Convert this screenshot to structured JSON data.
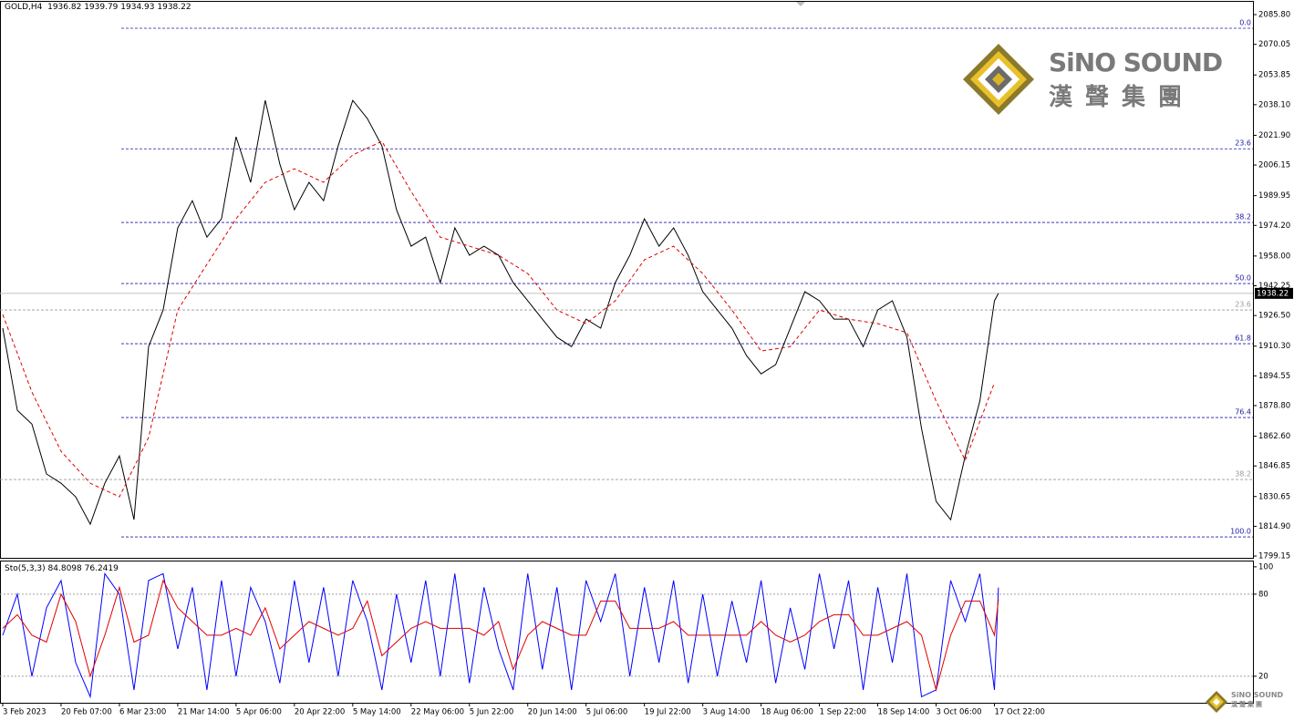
{
  "chart_data": [
    {
      "type": "line",
      "symbol": "GOLD,H4",
      "ohlc": [
        1936.82,
        1939.79,
        1934.93,
        1938.22
      ],
      "color": "#000000",
      "x": [
        0,
        22,
        44,
        66,
        88,
        110,
        132,
        154,
        176,
        198,
        220,
        242,
        264,
        286,
        308,
        330,
        352,
        374,
        396,
        418,
        440,
        462,
        484,
        506,
        528,
        550,
        572,
        594,
        616,
        638,
        660,
        682,
        704,
        726,
        748,
        770,
        792,
        814,
        836,
        858,
        880,
        902,
        924,
        946,
        968,
        990,
        1012,
        1034,
        1056,
        1078,
        1100,
        1122,
        1144,
        1166,
        1188,
        1210,
        1232,
        1254,
        1276,
        1298,
        1320,
        1342,
        1364,
        1386,
        1408,
        1430,
        1452,
        1474,
        1496,
        1502
      ],
      "values": [
        1919.8,
        1876.3,
        1869,
        1842.6,
        1837.7,
        1830.5,
        1816,
        1837.7,
        1852.2,
        1818.4,
        1910,
        1929.4,
        1972.9,
        1987.3,
        1968,
        1977.7,
        2021.1,
        1997,
        2040.4,
        2006.7,
        1982.5,
        1997,
        1987.3,
        2016.3,
        2040.4,
        2030.8,
        2016.3,
        1982.5,
        1963.2,
        1968,
        1943.9,
        1972.9,
        1958.4,
        1963.2,
        1958.4,
        1943.9,
        1934.3,
        1924.6,
        1915,
        1910,
        1924.6,
        1919.8,
        1943.9,
        1958.4,
        1977.7,
        1963.2,
        1972.9,
        1958.4,
        1939.1,
        1929.4,
        1919.8,
        1905.3,
        1895.6,
        1900.5,
        1919.8,
        1939.1,
        1934.3,
        1924.6,
        1924.6,
        1910,
        1929.4,
        1934.3,
        1915,
        1866.7,
        1828.1,
        1818.4,
        1852.2,
        1881.2,
        1934.3,
        1938.22
      ],
      "ma": {
        "color": "#e00000",
        "x": [
          0,
          44,
          88,
          132,
          176,
          220,
          264,
          308,
          352,
          396,
          440,
          484,
          528,
          572,
          616,
          660,
          704,
          748,
          792,
          836,
          880,
          924,
          968,
          1012,
          1056,
          1100,
          1144,
          1188,
          1232,
          1276,
          1320,
          1364,
          1408,
          1452,
          1496
        ],
        "values": [
          1927,
          1886,
          1854.6,
          1837.7,
          1830.5,
          1861.9,
          1929.4,
          1953.6,
          1977.7,
          1997,
          2004.2,
          1997,
          2011.5,
          2018.7,
          1992.2,
          1968,
          1963.2,
          1958.4,
          1948.7,
          1929.4,
          1922.2,
          1934.3,
          1956,
          1963.2,
          1948.7,
          1929.4,
          1907.7,
          1910,
          1929.4,
          1924.6,
          1922.2,
          1917.4,
          1881.2,
          1849.8,
          1890.9
        ]
      },
      "current_price": 1938.22,
      "ylim": [
        1798.2,
        2092.57
      ],
      "yticks": [
        {
          "value": 2085.8,
          "label": "2085.80"
        },
        2070.05,
        2053.85,
        {
          "value": 2038.1,
          "label": "2038.10"
        },
        {
          "value": 2021.9,
          "label": "2021.90"
        },
        2006.15,
        1989.95,
        {
          "value": 1974.2,
          "label": "1974.20"
        },
        {
          "value": 1958,
          "label": "1958.00"
        },
        1942.25,
        {
          "value": 1926.5,
          "label": "1926.50"
        },
        {
          "value": 1910.3,
          "label": "1910.30"
        },
        1894.55,
        {
          "value": 1878.8,
          "label": "1878.80"
        },
        {
          "value": 1862.6,
          "label": "1862.60"
        },
        1846.85,
        1830.65,
        {
          "value": 1814.9,
          "label": "1814.90"
        },
        1799.15
      ],
      "xlim": [
        -4.13,
        1886
      ],
      "xticks": [
        {
          "value": 0,
          "label": "3 Feb 2023"
        },
        {
          "value": 88,
          "label": "20 Feb 07:00"
        },
        {
          "value": 176,
          "label": "6 Mar 23:00"
        },
        {
          "value": 264,
          "label": "21 Mar 14:00"
        },
        {
          "value": 352,
          "label": "5 Apr 06:00"
        },
        {
          "value": 440,
          "label": "20 Apr 22:00"
        },
        {
          "value": 528,
          "label": "5 May 14:00"
        },
        {
          "value": 616,
          "label": "22 May 06:00"
        },
        {
          "value": 704,
          "label": "5 Jun 22:00"
        },
        {
          "value": 792,
          "label": "20 Jun 14:00"
        },
        {
          "value": 880,
          "label": "5 Jul 06:00"
        },
        {
          "value": 968,
          "label": "19 Jul 22:00"
        },
        {
          "value": 1056,
          "label": "3 Aug 14:00"
        },
        {
          "value": 1144,
          "label": "18 Aug 06:00"
        },
        {
          "value": 1232,
          "label": "1 Sep 22:00"
        },
        {
          "value": 1320,
          "label": "18 Sep 14:00"
        },
        {
          "value": 1408,
          "label": "3 Oct 06:00"
        },
        {
          "value": 1496,
          "label": "17 Oct 22:00"
        }
      ],
      "fib_levels": [
        {
          "value": 2078.56,
          "label": "0.0"
        },
        {
          "value": 2014.76,
          "label": "23.6"
        },
        {
          "value": 1975.76,
          "label": "38.2"
        },
        {
          "value": 1943.43,
          "label": "50.0"
        },
        {
          "value": 1911.57,
          "label": "61.8"
        },
        {
          "value": 1872.48,
          "label": "76.4"
        },
        {
          "value": 1809.26,
          "label": "100.0"
        }
      ],
      "fib_levels_2": [
        {
          "value": 1929.43,
          "label": "23.6"
        },
        {
          "value": 1839.66,
          "label": "38.2"
        }
      ]
    },
    {
      "type": "line",
      "title": "Sto(5,3,3)",
      "series": [
        {
          "color": "#0000ff",
          "values": [
            50,
            80,
            20,
            70,
            90,
            30,
            5,
            95,
            80,
            10,
            90,
            95,
            40,
            85,
            10,
            90,
            20,
            85,
            60,
            15,
            90,
            30,
            85,
            20,
            90,
            60,
            10,
            80,
            30,
            90,
            20,
            95,
            15,
            85,
            40,
            10,
            95,
            25,
            85,
            10,
            90,
            60,
            95,
            20,
            85,
            30,
            90,
            15,
            80,
            20,
            75,
            30,
            90,
            15,
            70,
            25,
            95,
            40,
            90,
            10,
            85,
            30,
            95,
            5,
            10,
            90,
            60,
            95,
            10,
            84.8098
          ]
        },
        {
          "color": "#e00000",
          "values": [
            55,
            65,
            50,
            45,
            80,
            60,
            20,
            50,
            85,
            45,
            50,
            90,
            70,
            60,
            50,
            50,
            55,
            50,
            70,
            40,
            50,
            60,
            55,
            50,
            55,
            75,
            35,
            45,
            55,
            60,
            55,
            55,
            55,
            50,
            60,
            25,
            50,
            60,
            55,
            50,
            50,
            75,
            75,
            55,
            55,
            55,
            60,
            50,
            50,
            50,
            50,
            50,
            60,
            50,
            45,
            50,
            60,
            65,
            65,
            50,
            50,
            55,
            60,
            50,
            10,
            50,
            75,
            75,
            50,
            76.2419
          ]
        }
      ],
      "ylim": [
        0.6,
        103.9
      ],
      "yticks": [
        100,
        80,
        20
      ],
      "levels": [
        80,
        20
      ]
    }
  ],
  "logo": {
    "name": "SiNO SOUND",
    "chinese": "漢聲集團"
  }
}
